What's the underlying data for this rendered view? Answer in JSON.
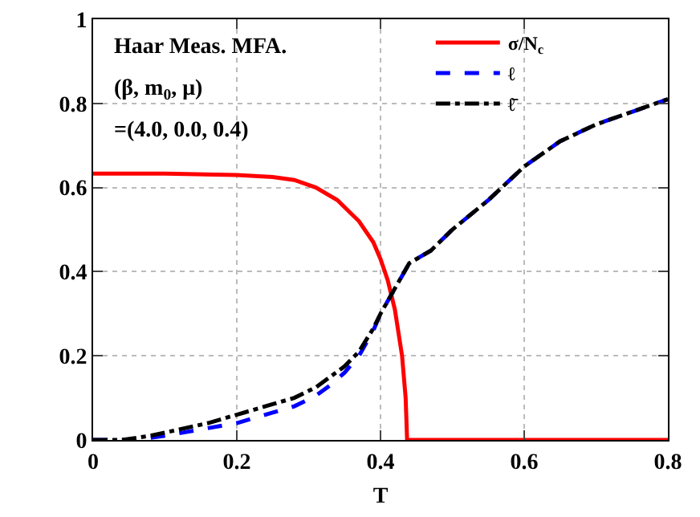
{
  "chart_data": {
    "type": "line",
    "xlabel": "T",
    "annotations": [
      "Haar Meas. MFA.",
      "(β, m$_{0}$, μ)",
      "=(4.0, 0.0, 0.4)"
    ],
    "xlim": [
      0,
      0.8
    ],
    "ylim": [
      0,
      1
    ],
    "xticks": [
      0,
      0.2,
      0.4,
      0.6,
      0.8
    ],
    "yticks": [
      0,
      0.2,
      0.4,
      0.6,
      0.8,
      1
    ],
    "grid": true,
    "legend": "top right",
    "marker": "none",
    "series": [
      {
        "name": "σ/N$_{c}$",
        "color": "#ff0000",
        "line_style": "solid",
        "x": [
          0,
          0.1,
          0.2,
          0.25,
          0.28,
          0.31,
          0.34,
          0.37,
          0.39,
          0.4,
          0.41,
          0.42,
          0.43,
          0.435,
          0.437,
          0.5,
          0.6,
          0.7,
          0.8
        ],
        "values": [
          0.633,
          0.633,
          0.63,
          0.625,
          0.618,
          0.6,
          0.57,
          0.52,
          0.47,
          0.43,
          0.38,
          0.31,
          0.2,
          0.1,
          0,
          0,
          0,
          0,
          0
        ]
      },
      {
        "name": "ℓ",
        "color": "#0000ff",
        "line_style": "dashed",
        "x": [
          0,
          0.06,
          0.1,
          0.15,
          0.2,
          0.25,
          0.28,
          0.31,
          0.33,
          0.35,
          0.37,
          0.39,
          0.4,
          0.41,
          0.42,
          0.43,
          0.44,
          0.47,
          0.5,
          0.55,
          0.6,
          0.65,
          0.7,
          0.75,
          0.8
        ],
        "values": [
          0,
          0,
          0.01,
          0.025,
          0.04,
          0.065,
          0.08,
          0.105,
          0.13,
          0.16,
          0.2,
          0.26,
          0.3,
          0.33,
          0.36,
          0.39,
          0.42,
          0.45,
          0.5,
          0.57,
          0.65,
          0.71,
          0.75,
          0.78,
          0.81
        ]
      },
      {
        "name": "ℓ̄",
        "color": "#000000",
        "line_style": "dashdot",
        "x": [
          0,
          0.04,
          0.08,
          0.12,
          0.16,
          0.2,
          0.25,
          0.28,
          0.31,
          0.33,
          0.35,
          0.37,
          0.39,
          0.4,
          0.41,
          0.42,
          0.43,
          0.44,
          0.47,
          0.5,
          0.55,
          0.6,
          0.65,
          0.7,
          0.75,
          0.8
        ],
        "values": [
          0,
          0,
          0.01,
          0.025,
          0.04,
          0.06,
          0.085,
          0.1,
          0.125,
          0.15,
          0.175,
          0.21,
          0.265,
          0.3,
          0.33,
          0.36,
          0.39,
          0.42,
          0.45,
          0.5,
          0.57,
          0.65,
          0.71,
          0.75,
          0.78,
          0.81
        ]
      }
    ]
  }
}
